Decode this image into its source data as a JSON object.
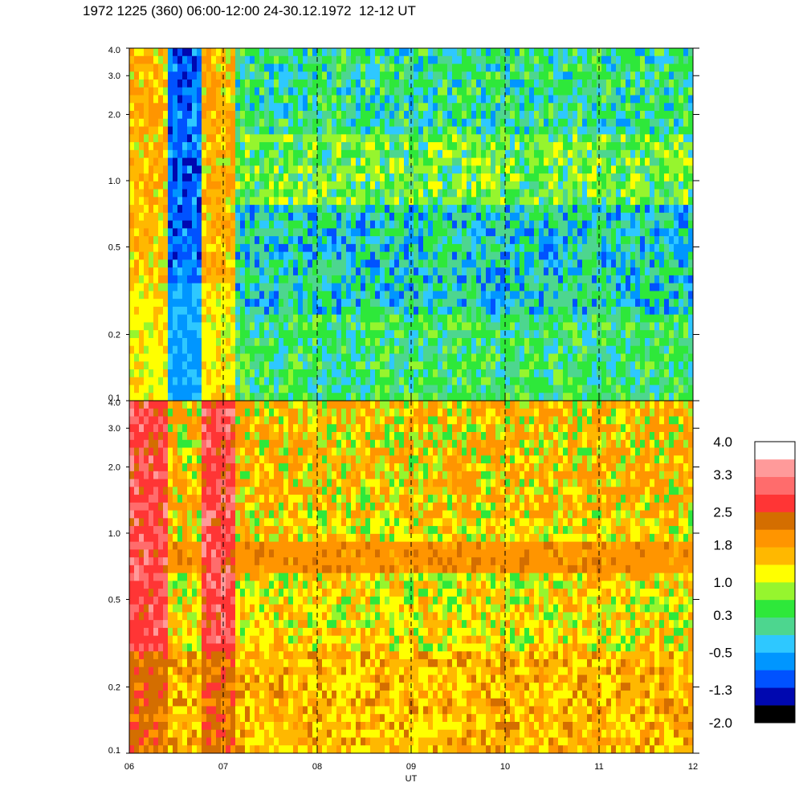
{
  "title": "1972 1225 (360) 06:00-12:00 24-30.12.1972  12-12 UT",
  "colors": {
    "levels": [
      "#000000",
      "#0008b0",
      "#0052ff",
      "#0096ff",
      "#2ec8ff",
      "#4dd68f",
      "#2ee83a",
      "#96f52e",
      "#ffff00",
      "#ffb800",
      "#ff9500",
      "#d46e00",
      "#ff3535",
      "#ff6c6c",
      "#ff9a9a",
      "#ffffff"
    ],
    "grid": "#000000"
  },
  "chart_data": [
    {
      "type": "heatmap",
      "panel": "upper",
      "xlabel": "",
      "ylabel": "",
      "x_tick_labels": [
        "06",
        "07",
        "08",
        "09",
        "10",
        "11",
        "12"
      ],
      "y_tick_labels": [
        "0.1",
        "0.2",
        "0.5",
        "1.0",
        "2.0",
        "3.0",
        "4.0"
      ],
      "y_ticks": [
        0.1,
        0.2,
        0.5,
        1.0,
        2.0,
        3.0,
        4.0
      ],
      "ylim": [
        0.1,
        4.0
      ],
      "yscale": "log",
      "xlim": [
        6,
        12
      ],
      "vertical_dashed_lines": [
        7,
        8,
        9,
        10,
        11
      ],
      "dominant_levels": [
        "green",
        "cyan",
        "blue"
      ]
    },
    {
      "type": "heatmap",
      "panel": "lower",
      "xlabel": "UT",
      "ylabel": "",
      "x_tick_labels": [
        "06",
        "07",
        "08",
        "09",
        "10",
        "11",
        "12"
      ],
      "y_tick_labels": [
        "0.1",
        "0.2",
        "0.5",
        "1.0",
        "2.0",
        "3.0",
        "4.0"
      ],
      "y_ticks": [
        0.1,
        0.2,
        0.5,
        1.0,
        2.0,
        3.0,
        4.0
      ],
      "ylim": [
        0.1,
        4.0
      ],
      "yscale": "log",
      "xlim": [
        6,
        12
      ],
      "vertical_dashed_lines": [
        7,
        8,
        9,
        10,
        11
      ],
      "dominant_levels": [
        "orange",
        "yellow"
      ],
      "band_near_y": 0.8
    }
  ],
  "colorbar": {
    "labels": [
      "4.0",
      "3.3",
      "2.5",
      "1.8",
      "1.0",
      "0.3",
      "-0.5",
      "-1.3",
      "-2.0"
    ],
    "values": [
      4.0,
      3.3,
      2.5,
      1.8,
      1.0,
      0.3,
      -0.5,
      -1.3,
      -2.0
    ]
  }
}
